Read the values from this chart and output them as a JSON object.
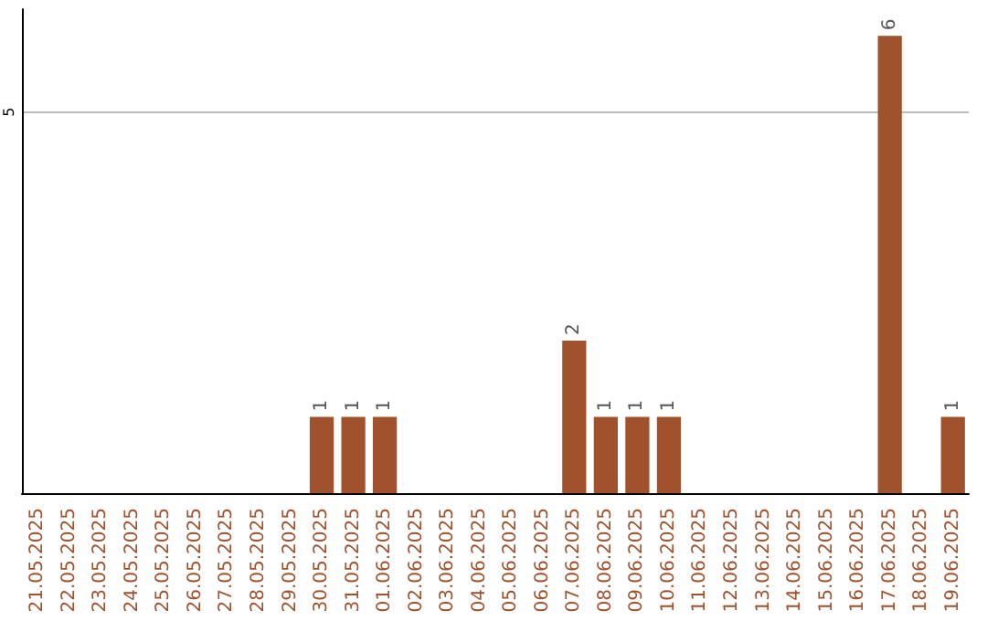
{
  "chart_data": {
    "type": "bar",
    "categories": [
      "21.05.2025",
      "22.05.2025",
      "23.05.2025",
      "24.05.2025",
      "25.05.2025",
      "26.05.2025",
      "27.05.2025",
      "28.05.2025",
      "29.05.2025",
      "30.05.2025",
      "31.05.2025",
      "01.06.2025",
      "02.06.2025",
      "03.06.2025",
      "04.06.2025",
      "05.06.2025",
      "06.06.2025",
      "07.06.2025",
      "08.06.2025",
      "09.06.2025",
      "10.06.2025",
      "11.06.2025",
      "12.06.2025",
      "13.06.2025",
      "14.06.2025",
      "15.06.2025",
      "16.06.2025",
      "17.06.2025",
      "18.06.2025",
      "19.06.2025"
    ],
    "values": [
      0,
      0,
      0,
      0,
      0,
      0,
      0,
      0,
      0,
      1,
      1,
      1,
      0,
      0,
      0,
      0,
      0,
      2,
      1,
      1,
      1,
      0,
      0,
      0,
      0,
      0,
      0,
      6,
      0,
      1
    ],
    "value_labels": [
      null,
      null,
      null,
      null,
      null,
      null,
      null,
      null,
      null,
      "1",
      "1",
      "1",
      null,
      null,
      null,
      null,
      null,
      "2",
      "1",
      "1",
      "1",
      null,
      null,
      null,
      null,
      null,
      null,
      "6",
      null,
      "1"
    ],
    "color": "#a0522d",
    "ylim": [
      0,
      6.35
    ],
    "yticks": [
      5
    ],
    "grid": "y"
  }
}
